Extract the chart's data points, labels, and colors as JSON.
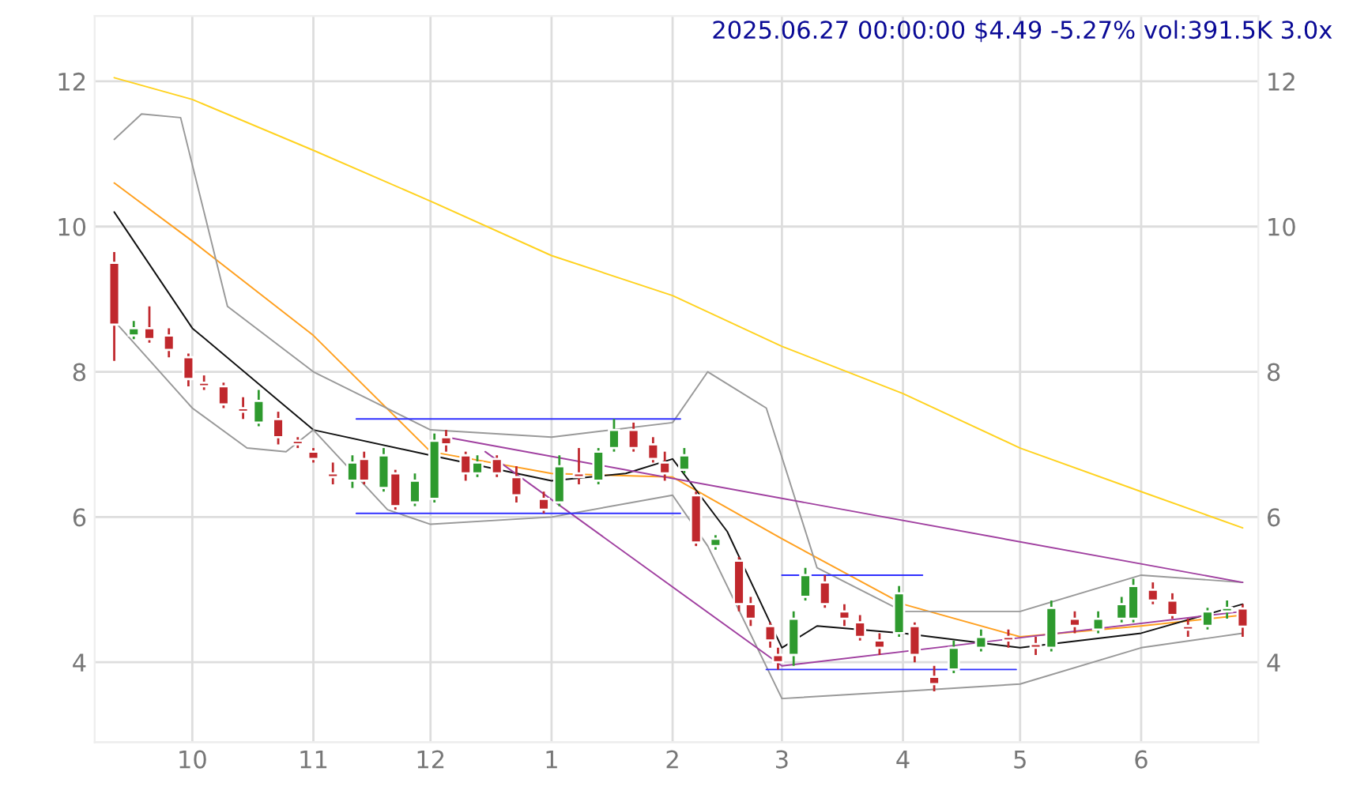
{
  "chart_data": {
    "type": "candlestick",
    "title": "2025.06.27 00:00:00 $4.49 -5.27% vol:391.5K 3.0x",
    "x": [
      "2024-09-11",
      "2024-09-16",
      "2024-09-20",
      "2024-09-25",
      "2024-09-30",
      "2024-10-04",
      "2024-10-09",
      "2024-10-14",
      "2024-10-18",
      "2024-10-23",
      "2024-10-28",
      "2024-11-01",
      "2024-11-06",
      "2024-11-11",
      "2024-11-14",
      "2024-11-19",
      "2024-11-22",
      "2024-11-27",
      "2024-12-02",
      "2024-12-05",
      "2024-12-10",
      "2024-12-13",
      "2024-12-18",
      "2024-12-23",
      "2024-12-30",
      "2025-01-03",
      "2025-01-08",
      "2025-01-13",
      "2025-01-17",
      "2025-01-22",
      "2025-01-27",
      "2025-01-30",
      "2025-02-04",
      "2025-02-07",
      "2025-02-12",
      "2025-02-18",
      "2025-02-21",
      "2025-02-26",
      "2025-02-28",
      "2025-03-04",
      "2025-03-07",
      "2025-03-12",
      "2025-03-17",
      "2025-03-21",
      "2025-03-26",
      "2025-03-31",
      "2025-04-04",
      "2025-04-09",
      "2025-04-14",
      "2025-04-21",
      "2025-04-28",
      "2025-05-05",
      "2025-05-09",
      "2025-05-15",
      "2025-05-21",
      "2025-05-27",
      "2025-05-30",
      "2025-06-04",
      "2025-06-09",
      "2025-06-13",
      "2025-06-18",
      "2025-06-23",
      "2025-06-27"
    ],
    "ohlc": [
      [
        9.5,
        9.65,
        8.15,
        8.65
      ],
      [
        8.5,
        8.7,
        8.45,
        8.6
      ],
      [
        8.6,
        8.9,
        8.4,
        8.45
      ],
      [
        8.5,
        8.6,
        8.2,
        8.3
      ],
      [
        8.2,
        8.25,
        7.8,
        7.9
      ],
      [
        7.85,
        7.95,
        7.75,
        7.8
      ],
      [
        7.8,
        7.85,
        7.5,
        7.55
      ],
      [
        7.5,
        7.65,
        7.35,
        7.45
      ],
      [
        7.3,
        7.75,
        7.25,
        7.6
      ],
      [
        7.35,
        7.45,
        7.0,
        7.1
      ],
      [
        7.05,
        7.1,
        6.95,
        7.0
      ],
      [
        6.9,
        6.95,
        6.75,
        6.8
      ],
      [
        6.6,
        6.75,
        6.45,
        6.55
      ],
      [
        6.5,
        6.85,
        6.4,
        6.75
      ],
      [
        6.8,
        6.9,
        6.45,
        6.5
      ],
      [
        6.4,
        6.95,
        6.35,
        6.85
      ],
      [
        6.6,
        6.65,
        6.1,
        6.15
      ],
      [
        6.2,
        6.6,
        6.15,
        6.5
      ],
      [
        6.25,
        7.15,
        6.2,
        7.05
      ],
      [
        7.1,
        7.2,
        6.9,
        7.0
      ],
      [
        6.85,
        6.9,
        6.5,
        6.6
      ],
      [
        6.6,
        6.85,
        6.55,
        6.75
      ],
      [
        6.8,
        6.85,
        6.55,
        6.6
      ],
      [
        6.55,
        6.7,
        6.2,
        6.3
      ],
      [
        6.25,
        6.35,
        6.05,
        6.1
      ],
      [
        6.2,
        6.85,
        6.15,
        6.7
      ],
      [
        6.6,
        6.95,
        6.45,
        6.55
      ],
      [
        6.5,
        6.95,
        6.45,
        6.9
      ],
      [
        6.95,
        7.35,
        6.9,
        7.2
      ],
      [
        7.2,
        7.3,
        6.9,
        6.95
      ],
      [
        7.0,
        7.1,
        6.75,
        6.8
      ],
      [
        6.75,
        6.9,
        6.5,
        6.6
      ],
      [
        6.65,
        6.95,
        6.6,
        6.85
      ],
      [
        6.3,
        6.35,
        5.6,
        5.65
      ],
      [
        5.6,
        5.75,
        5.55,
        5.7
      ],
      [
        5.4,
        5.45,
        4.7,
        4.8
      ],
      [
        4.8,
        4.9,
        4.5,
        4.6
      ],
      [
        4.5,
        4.55,
        4.2,
        4.3
      ],
      [
        4.1,
        4.2,
        3.9,
        4.0
      ],
      [
        4.1,
        4.7,
        3.95,
        4.6
      ],
      [
        4.9,
        5.3,
        4.85,
        5.2
      ],
      [
        5.1,
        5.2,
        4.75,
        4.8
      ],
      [
        4.7,
        4.8,
        4.5,
        4.6
      ],
      [
        4.55,
        4.65,
        4.3,
        4.35
      ],
      [
        4.3,
        4.4,
        4.1,
        4.2
      ],
      [
        4.4,
        5.05,
        4.35,
        4.95
      ],
      [
        4.5,
        4.55,
        4.0,
        4.1
      ],
      [
        3.8,
        3.95,
        3.6,
        3.7
      ],
      [
        3.9,
        4.3,
        3.85,
        4.2
      ],
      [
        4.2,
        4.45,
        4.15,
        4.35
      ],
      [
        4.35,
        4.45,
        4.2,
        4.3
      ],
      [
        4.25,
        4.35,
        4.1,
        4.2
      ],
      [
        4.2,
        4.85,
        4.15,
        4.75
      ],
      [
        4.6,
        4.7,
        4.4,
        4.5
      ],
      [
        4.45,
        4.7,
        4.4,
        4.6
      ],
      [
        4.6,
        4.9,
        4.55,
        4.8
      ],
      [
        4.6,
        5.15,
        4.55,
        5.05
      ],
      [
        5.0,
        5.1,
        4.8,
        4.85
      ],
      [
        4.85,
        4.95,
        4.6,
        4.65
      ],
      [
        4.5,
        4.6,
        4.35,
        4.45
      ],
      [
        4.5,
        4.75,
        4.45,
        4.7
      ],
      [
        4.7,
        4.85,
        4.6,
        4.75
      ],
      [
        4.74,
        4.8,
        4.35,
        4.49
      ]
    ],
    "colors": [
      "#c0282d",
      "#2e9a2e",
      "#c0282d",
      "#c0282d",
      "#c0282d",
      "#c0282d",
      "#c0282d",
      "#c0282d",
      "#2e9a2e",
      "#c0282d",
      "#c0282d",
      "#c0282d",
      "#c0282d",
      "#2e9a2e",
      "#c0282d",
      "#2e9a2e",
      "#c0282d",
      "#2e9a2e",
      "#2e9a2e",
      "#c0282d",
      "#c0282d",
      "#2e9a2e",
      "#c0282d",
      "#c0282d",
      "#c0282d",
      "#2e9a2e",
      "#c0282d",
      "#2e9a2e",
      "#2e9a2e",
      "#c0282d",
      "#c0282d",
      "#c0282d",
      "#2e9a2e",
      "#c0282d",
      "#2e9a2e",
      "#c0282d",
      "#c0282d",
      "#c0282d",
      "#c0282d",
      "#2e9a2e",
      "#2e9a2e",
      "#c0282d",
      "#c0282d",
      "#c0282d",
      "#c0282d",
      "#2e9a2e",
      "#c0282d",
      "#c0282d",
      "#2e9a2e",
      "#2e9a2e",
      "#c0282d",
      "#c0282d",
      "#2e9a2e",
      "#c0282d",
      "#2e9a2e",
      "#2e9a2e",
      "#2e9a2e",
      "#c0282d",
      "#c0282d",
      "#c0282d",
      "#2e9a2e",
      "#2e9a2e",
      "#c0282d"
    ],
    "series": [
      {
        "type": "line",
        "color": "#ffd21f",
        "x": [
          "2024-09-11",
          "2024-10-01",
          "2024-11-01",
          "2024-12-01",
          "2025-01-01",
          "2025-02-01",
          "2025-03-01",
          "2025-04-01",
          "2025-05-01",
          "2025-06-01",
          "2025-06-27"
        ],
        "values": [
          12.05,
          11.75,
          11.05,
          10.35,
          9.6,
          9.05,
          8.35,
          7.7,
          6.95,
          6.35,
          5.85
        ]
      },
      {
        "type": "line",
        "color": "#ffa020",
        "x": [
          "2024-09-11",
          "2024-10-01",
          "2024-11-01",
          "2024-12-01",
          "2025-01-01",
          "2025-02-01",
          "2025-03-01",
          "2025-04-01",
          "2025-05-01",
          "2025-06-01",
          "2025-06-27"
        ],
        "values": [
          10.6,
          9.8,
          8.5,
          6.9,
          6.6,
          6.55,
          5.7,
          4.8,
          4.35,
          4.5,
          4.65
        ]
      },
      {
        "type": "line",
        "color": "#111111",
        "x": [
          "2024-09-11",
          "2024-10-01",
          "2024-11-01",
          "2024-12-01",
          "2025-01-01",
          "2025-01-20",
          "2025-02-01",
          "2025-02-15",
          "2025-03-01",
          "2025-03-10",
          "2025-04-01",
          "2025-05-01",
          "2025-06-01",
          "2025-06-27"
        ],
        "values": [
          10.2,
          8.6,
          7.2,
          6.85,
          6.5,
          6.6,
          6.8,
          5.8,
          4.2,
          4.5,
          4.4,
          4.2,
          4.4,
          4.8
        ]
      },
      {
        "type": "line",
        "color": "#999999",
        "x": [
          "2024-09-11",
          "2024-09-18",
          "2024-09-28",
          "2024-10-10",
          "2024-11-01",
          "2024-12-01",
          "2025-01-01",
          "2025-02-01",
          "2025-02-10",
          "2025-02-25",
          "2025-03-10",
          "2025-04-01",
          "2025-05-01",
          "2025-06-01",
          "2025-06-27"
        ],
        "values": [
          11.2,
          11.55,
          11.5,
          8.9,
          8.0,
          7.2,
          7.1,
          7.3,
          8.0,
          7.5,
          5.3,
          4.7,
          4.7,
          5.2,
          5.1
        ]
      },
      {
        "type": "line",
        "color": "#999999",
        "x": [
          "2024-09-11",
          "2024-10-01",
          "2024-10-15",
          "2024-10-25",
          "2024-11-01",
          "2024-11-20",
          "2024-12-01",
          "2025-01-01",
          "2025-02-01",
          "2025-02-10",
          "2025-03-01",
          "2025-04-01",
          "2025-05-01",
          "2025-06-01",
          "2025-06-27"
        ],
        "values": [
          8.7,
          7.5,
          6.95,
          6.9,
          7.2,
          6.1,
          5.9,
          6.0,
          6.3,
          5.6,
          3.5,
          3.6,
          3.7,
          4.2,
          4.4
        ]
      },
      {
        "type": "line",
        "color": "#a040a0",
        "x": [
          "2024-12-05",
          "2025-06-27"
        ],
        "values": [
          7.1,
          5.1
        ]
      },
      {
        "type": "line",
        "color": "#a040a0",
        "x": [
          "2024-12-15",
          "2025-03-01",
          "2025-06-27"
        ],
        "values": [
          6.9,
          3.95,
          4.7
        ]
      },
      {
        "type": "line",
        "color": "#3030ff",
        "x": [
          "2024-11-12",
          "2025-02-03"
        ],
        "values": [
          7.35,
          7.35
        ]
      },
      {
        "type": "line",
        "color": "#3030ff",
        "x": [
          "2024-11-12",
          "2025-02-03"
        ],
        "values": [
          6.05,
          6.05
        ]
      },
      {
        "type": "line",
        "color": "#3030ff",
        "x": [
          "2025-03-01",
          "2025-04-06"
        ],
        "values": [
          5.2,
          5.2
        ]
      },
      {
        "type": "line",
        "color": "#3030ff",
        "x": [
          "2025-02-25",
          "2025-04-30"
        ],
        "values": [
          3.9,
          3.9
        ]
      }
    ],
    "xlim": [
      "2024-09-06",
      "2025-07-01"
    ],
    "xticks": [
      {
        "value": "2024-10-01",
        "label": "10"
      },
      {
        "value": "2024-11-01",
        "label": "11"
      },
      {
        "value": "2024-12-01",
        "label": "12"
      },
      {
        "value": "2025-01-01",
        "label": "1"
      },
      {
        "value": "2025-02-01",
        "label": "2"
      },
      {
        "value": "2025-03-01",
        "label": "3"
      },
      {
        "value": "2025-04-01",
        "label": "4"
      },
      {
        "value": "2025-05-01",
        "label": "5"
      },
      {
        "value": "2025-06-01",
        "label": "6"
      }
    ],
    "ylim": [
      2.9,
      12.9
    ],
    "yticks": [
      4,
      6,
      8,
      10,
      12
    ],
    "y2lim": [
      2.9,
      12.9
    ],
    "y2ticks": [
      4,
      6,
      8,
      10,
      12
    ],
    "grid": true,
    "legend": false
  }
}
